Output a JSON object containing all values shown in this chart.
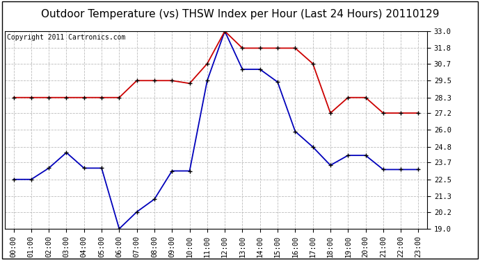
{
  "title": "Outdoor Temperature (vs) THSW Index per Hour (Last 24 Hours) 20110129",
  "copyright": "Copyright 2011 Cartronics.com",
  "hours": [
    "00:00",
    "01:00",
    "02:00",
    "03:00",
    "04:00",
    "05:00",
    "06:00",
    "07:00",
    "08:00",
    "09:00",
    "10:00",
    "11:00",
    "12:00",
    "13:00",
    "14:00",
    "15:00",
    "16:00",
    "17:00",
    "18:00",
    "19:00",
    "20:00",
    "21:00",
    "22:00",
    "23:00"
  ],
  "blue_data": [
    22.5,
    22.5,
    23.3,
    24.4,
    23.3,
    23.3,
    19.0,
    20.2,
    21.1,
    23.1,
    23.1,
    29.5,
    33.0,
    30.3,
    30.3,
    29.4,
    25.9,
    24.8,
    23.5,
    24.2,
    24.2,
    23.2,
    23.2,
    23.2
  ],
  "red_data": [
    28.3,
    28.3,
    28.3,
    28.3,
    28.3,
    28.3,
    28.3,
    29.5,
    29.5,
    29.5,
    29.3,
    30.7,
    33.0,
    31.8,
    31.8,
    31.8,
    31.8,
    30.7,
    27.2,
    28.3,
    28.3,
    27.2,
    27.2,
    27.2
  ],
  "blue_color": "#0000bb",
  "red_color": "#cc0000",
  "bg_color": "#ffffff",
  "grid_color": "#bbbbbb",
  "ylim": [
    19.0,
    33.0
  ],
  "yticks": [
    19.0,
    20.2,
    21.3,
    22.5,
    23.7,
    24.8,
    26.0,
    27.2,
    28.3,
    29.5,
    30.7,
    31.8,
    33.0
  ],
  "title_fontsize": 11,
  "copyright_fontsize": 7,
  "tick_fontsize": 7.5
}
